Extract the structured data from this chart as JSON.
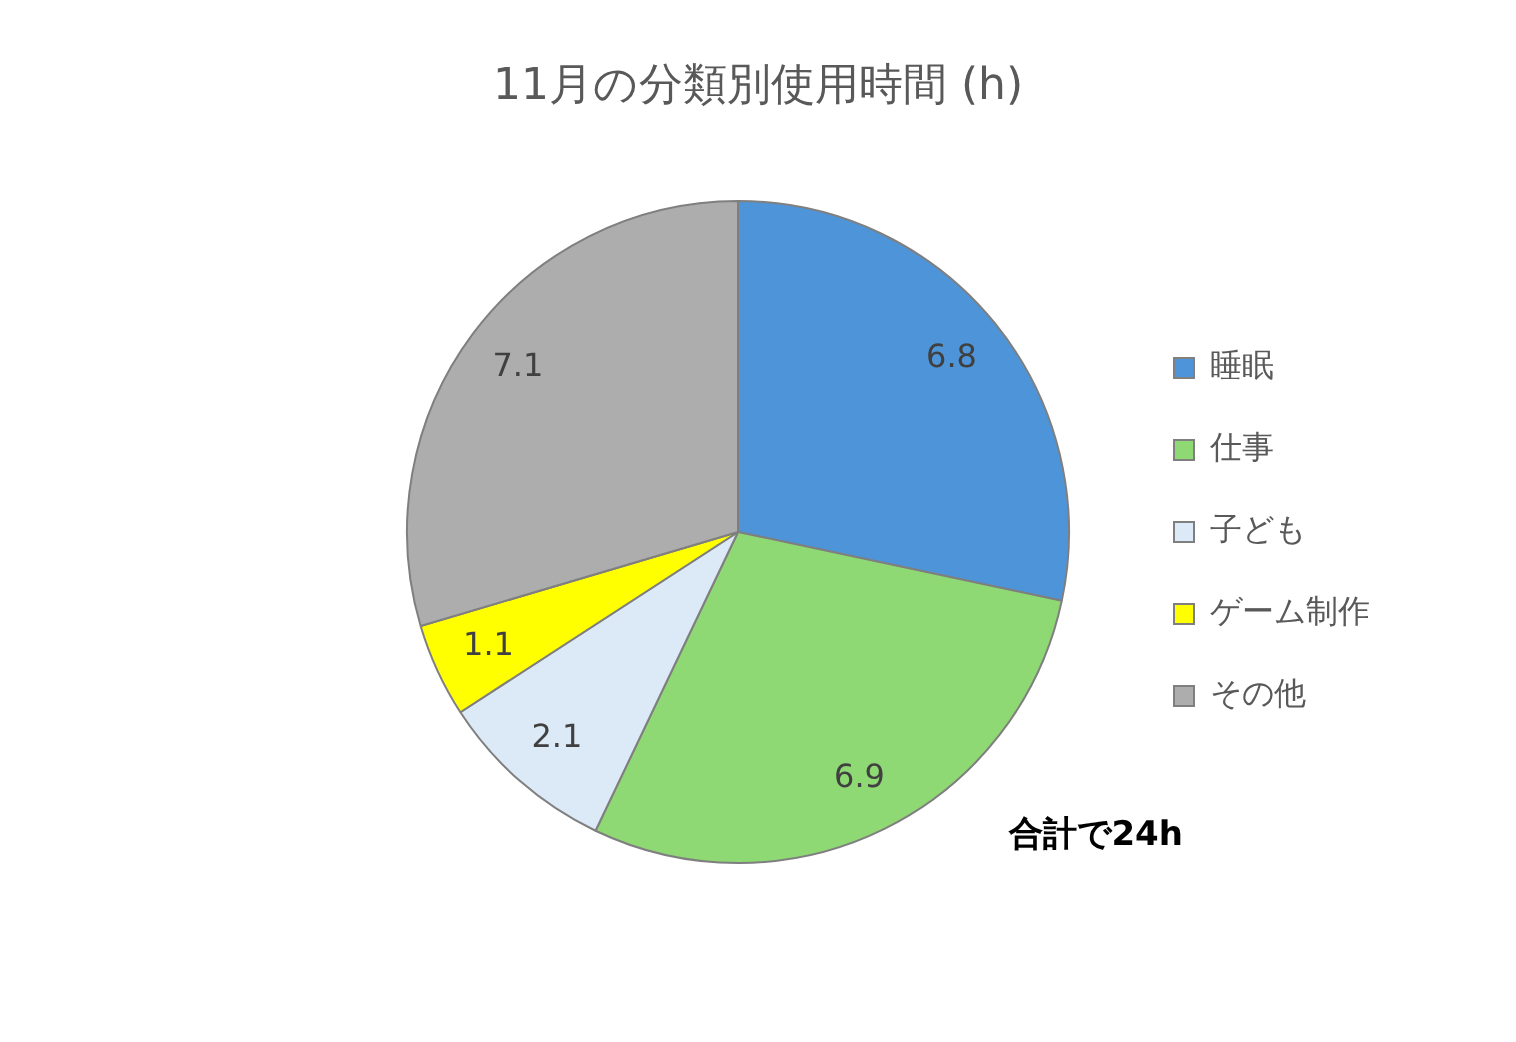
{
  "chart_data": {
    "type": "pie",
    "title": "11月の分類別使用時間 (h)",
    "categories": [
      "睡眠",
      "仕事",
      "子ども",
      "ゲーム制作",
      "その他"
    ],
    "values": [
      6.8,
      6.9,
      2.1,
      1.1,
      7.1
    ],
    "colors": [
      "#4e94d8",
      "#8fd974",
      "#dce9f6",
      "#ffff00",
      "#adadad"
    ],
    "data_labels": true,
    "legend": "right",
    "annotations": [
      "合計で24h"
    ]
  }
}
